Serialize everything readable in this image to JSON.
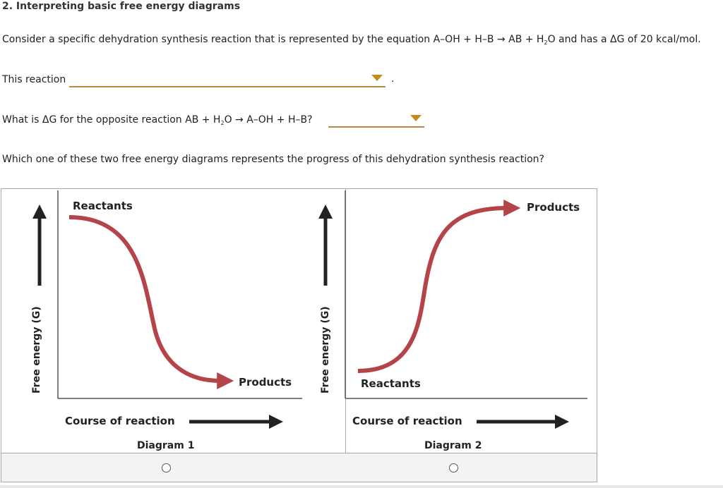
{
  "question": {
    "title": "2. Interpreting basic free energy diagrams",
    "intro_before": "Consider a specific dehydration synthesis reaction that is represented by the equation A–OH + H–B → AB + H",
    "intro_sub": "2",
    "intro_after": "O and has a ΔG of 20 kcal/mol.",
    "this_reaction_label": "This reaction",
    "this_reaction_value": "",
    "period": ".",
    "opposite_before": "What is ΔG for the opposite reaction AB + H",
    "opposite_sub": "2",
    "opposite_after": "O → A–OH + H–B?",
    "opposite_value": "",
    "which_question": "Which one of these two free energy diagrams represents the progress of this dehydration synthesis reaction?"
  },
  "diagrams": [
    {
      "caption": "Diagram 1",
      "y_label": "Free energy (G)",
      "x_label": "Course of reaction",
      "start_label": "Reactants",
      "end_label": "Products",
      "trend": "downhill"
    },
    {
      "caption": "Diagram 2",
      "y_label": "Free energy (G)",
      "x_label": "Course of reaction",
      "start_label": "Reactants",
      "end_label": "Products",
      "trend": "uphill"
    }
  ],
  "colors": {
    "curve": "#b5444a",
    "axis": "#222222",
    "dropdown_line": "#b8893e",
    "dropdown_caret": "#c98a1c"
  },
  "choices": [
    {
      "label": "Diagram 1",
      "selected": false
    },
    {
      "label": "Diagram 2",
      "selected": false
    }
  ]
}
